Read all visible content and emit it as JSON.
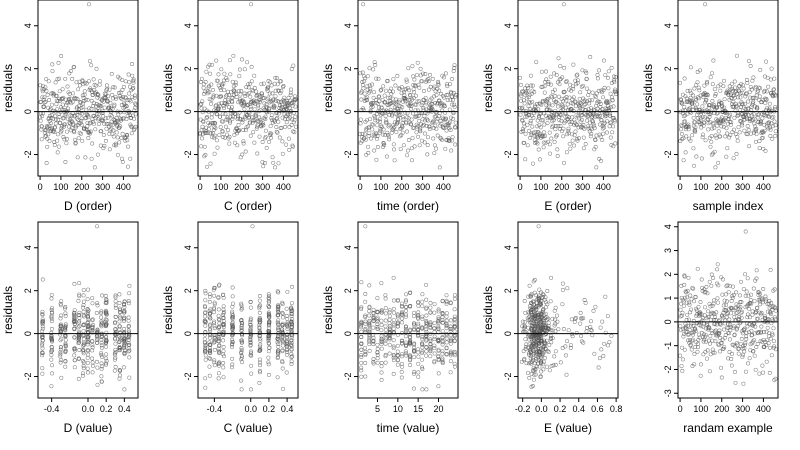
{
  "chart_data": [
    {
      "type": "scatter",
      "xlabel": "D (order)",
      "ylabel": "residuals",
      "xlim": [
        -10,
        470
      ],
      "ylim": [
        -3,
        5.2
      ],
      "xticks": [
        0,
        100,
        200,
        300,
        400
      ],
      "xtick_labels": [
        "0",
        "100",
        "200",
        "300",
        "400"
      ],
      "yticks": [
        -2,
        0,
        2,
        4
      ],
      "ytick_labels": [
        "-2",
        "0",
        "2",
        "4"
      ],
      "hline": 0,
      "gen": {
        "mode": "index",
        "n": 470,
        "xmin": 0,
        "xmax": 460,
        "seed": 11,
        "outlier": [
          235,
          5.0
        ]
      }
    },
    {
      "type": "scatter",
      "xlabel": "C (order)",
      "ylabel": "residuals",
      "xlim": [
        -10,
        470
      ],
      "ylim": [
        -3,
        5.2
      ],
      "xticks": [
        0,
        100,
        200,
        300,
        400
      ],
      "xtick_labels": [
        "0",
        "100",
        "200",
        "300",
        "400"
      ],
      "yticks": [
        -2,
        0,
        2,
        4
      ],
      "ytick_labels": [
        "-2",
        "0",
        "2",
        "4"
      ],
      "hline": 0,
      "gen": {
        "mode": "index",
        "n": 470,
        "xmin": 0,
        "xmax": 460,
        "seed": 23,
        "outlier": [
          245,
          5.0
        ]
      }
    },
    {
      "type": "scatter",
      "xlabel": "time (order)",
      "ylabel": "residuals",
      "xlim": [
        -10,
        470
      ],
      "ylim": [
        -3,
        5.2
      ],
      "xticks": [
        0,
        100,
        200,
        300,
        400
      ],
      "xtick_labels": [
        "0",
        "100",
        "200",
        "300",
        "400"
      ],
      "yticks": [
        -2,
        0,
        2,
        4
      ],
      "ytick_labels": [
        "-2",
        "0",
        "2",
        "4"
      ],
      "hline": 0,
      "gen": {
        "mode": "index",
        "n": 470,
        "xmin": 0,
        "xmax": 460,
        "seed": 37,
        "outlier": [
          15,
          5.0
        ]
      }
    },
    {
      "type": "scatter",
      "xlabel": "E (order)",
      "ylabel": "residuals",
      "xlim": [
        -10,
        470
      ],
      "ylim": [
        -3,
        5.2
      ],
      "xticks": [
        0,
        100,
        200,
        300,
        400
      ],
      "xtick_labels": [
        "0",
        "100",
        "200",
        "300",
        "400"
      ],
      "yticks": [
        -2,
        0,
        2,
        4
      ],
      "ytick_labels": [
        "-2",
        "0",
        "2",
        "4"
      ],
      "hline": 0,
      "gen": {
        "mode": "index",
        "n": 470,
        "xmin": 0,
        "xmax": 460,
        "seed": 41,
        "outlier": [
          210,
          5.0
        ]
      }
    },
    {
      "type": "scatter",
      "xlabel": "sample index",
      "ylabel": "residuals",
      "xlim": [
        -10,
        470
      ],
      "ylim": [
        -3,
        5.2
      ],
      "xticks": [
        0,
        100,
        200,
        300,
        400
      ],
      "xtick_labels": [
        "0",
        "100",
        "200",
        "300",
        "400"
      ],
      "yticks": [
        -2,
        0,
        2,
        4
      ],
      "ytick_labels": [
        "-2",
        "0",
        "2",
        "4"
      ],
      "hline": 0,
      "gen": {
        "mode": "index",
        "n": 470,
        "xmin": 0,
        "xmax": 460,
        "seed": 53,
        "outlier": [
          120,
          5.0
        ]
      }
    },
    {
      "type": "scatter",
      "xlabel": "D (value)",
      "ylabel": "residuals",
      "xlim": [
        -0.55,
        0.55
      ],
      "ylim": [
        -3,
        5.2
      ],
      "xticks": [
        -0.4,
        0,
        0.2,
        0.4
      ],
      "xtick_labels": [
        "-0.4",
        "0.0",
        "0.2",
        "0.4"
      ],
      "yticks": [
        -2,
        0,
        2,
        4
      ],
      "ytick_labels": [
        "-2",
        "0",
        "2",
        "4"
      ],
      "hline": 0,
      "gen": {
        "mode": "columns",
        "n": 470,
        "cols": [
          -0.5,
          -0.4,
          -0.3,
          -0.25,
          -0.15,
          -0.1,
          -0.05,
          0,
          0.05,
          0.1,
          0.15,
          0.2,
          0.3,
          0.35,
          0.4,
          0.45
        ],
        "jitter": 0.006,
        "seed": 61,
        "outlier": [
          0.1,
          5.0
        ]
      }
    },
    {
      "type": "scatter",
      "xlabel": "C (value)",
      "ylabel": "residuals",
      "xlim": [
        -0.58,
        0.52
      ],
      "ylim": [
        -3,
        5.2
      ],
      "xticks": [
        -0.4,
        0,
        0.2,
        0.4
      ],
      "xtick_labels": [
        "-0.4",
        "0.0",
        "0.2",
        "0.4"
      ],
      "yticks": [
        -2,
        0,
        2,
        4
      ],
      "ytick_labels": [
        "-2",
        "0",
        "2",
        "4"
      ],
      "hline": 0,
      "gen": {
        "mode": "columns",
        "n": 470,
        "cols": [
          -0.5,
          -0.45,
          -0.4,
          -0.35,
          -0.3,
          -0.2,
          -0.1,
          0,
          0.1,
          0.2,
          0.3,
          0.35,
          0.4,
          0.45
        ],
        "jitter": 0.006,
        "seed": 71,
        "outlier": [
          0.02,
          5.0
        ]
      }
    },
    {
      "type": "scatter",
      "xlabel": "time (value)",
      "ylabel": "residuals",
      "xlim": [
        0.2,
        24.8
      ],
      "ylim": [
        -3,
        5.2
      ],
      "xticks": [
        5,
        10,
        15,
        20
      ],
      "xtick_labels": [
        "5",
        "10",
        "15",
        "20"
      ],
      "yticks": [
        -2,
        0,
        2,
        4
      ],
      "ytick_labels": [
        "-2",
        "0",
        "2",
        "4"
      ],
      "hline": 0,
      "gen": {
        "mode": "columns",
        "n": 470,
        "cols": [
          1,
          2,
          3,
          4,
          5,
          6,
          7,
          8,
          9,
          10,
          11,
          12,
          13,
          14,
          15,
          16,
          17,
          18,
          19,
          20,
          21,
          22,
          23,
          24
        ],
        "jitter": 0.05,
        "seed": 83,
        "outlier": [
          2,
          5.0
        ]
      }
    },
    {
      "type": "scatter",
      "xlabel": "E (value)",
      "ylabel": "residuals",
      "xlim": [
        -0.25,
        0.82
      ],
      "ylim": [
        -3,
        5.2
      ],
      "xticks": [
        -0.2,
        0,
        0.2,
        0.4,
        0.6,
        0.8
      ],
      "xtick_labels": [
        "-0.2",
        "0.0",
        "0.2",
        "0.4",
        "0.6",
        "0.8"
      ],
      "yticks": [
        -2,
        0,
        2,
        4
      ],
      "ytick_labels": [
        "-2",
        "0",
        "2",
        "4"
      ],
      "hline": 0,
      "gen": {
        "mode": "cluster",
        "n": 470,
        "center": -0.04,
        "spread": 0.07,
        "tail": 0.75,
        "seed": 97,
        "outlier": [
          -0.03,
          5.0
        ]
      }
    },
    {
      "type": "scatter",
      "xlabel": "randam example",
      "ylabel": "",
      "xlim": [
        -10,
        470
      ],
      "ylim": [
        -3.2,
        4.2
      ],
      "xticks": [
        0,
        100,
        200,
        300,
        400
      ],
      "xtick_labels": [
        "0",
        "100",
        "200",
        "300",
        "400"
      ],
      "yticks": [
        -3,
        -2,
        -1,
        0,
        1,
        2,
        3,
        4
      ],
      "ytick_labels": [
        "-3",
        "-2",
        "-1",
        "0",
        "1",
        "2",
        "3",
        "4"
      ],
      "hline": 0,
      "gen": {
        "mode": "index",
        "n": 470,
        "xmin": 0,
        "xmax": 460,
        "seed": 101,
        "outlier": [
          315,
          3.8
        ]
      }
    }
  ]
}
